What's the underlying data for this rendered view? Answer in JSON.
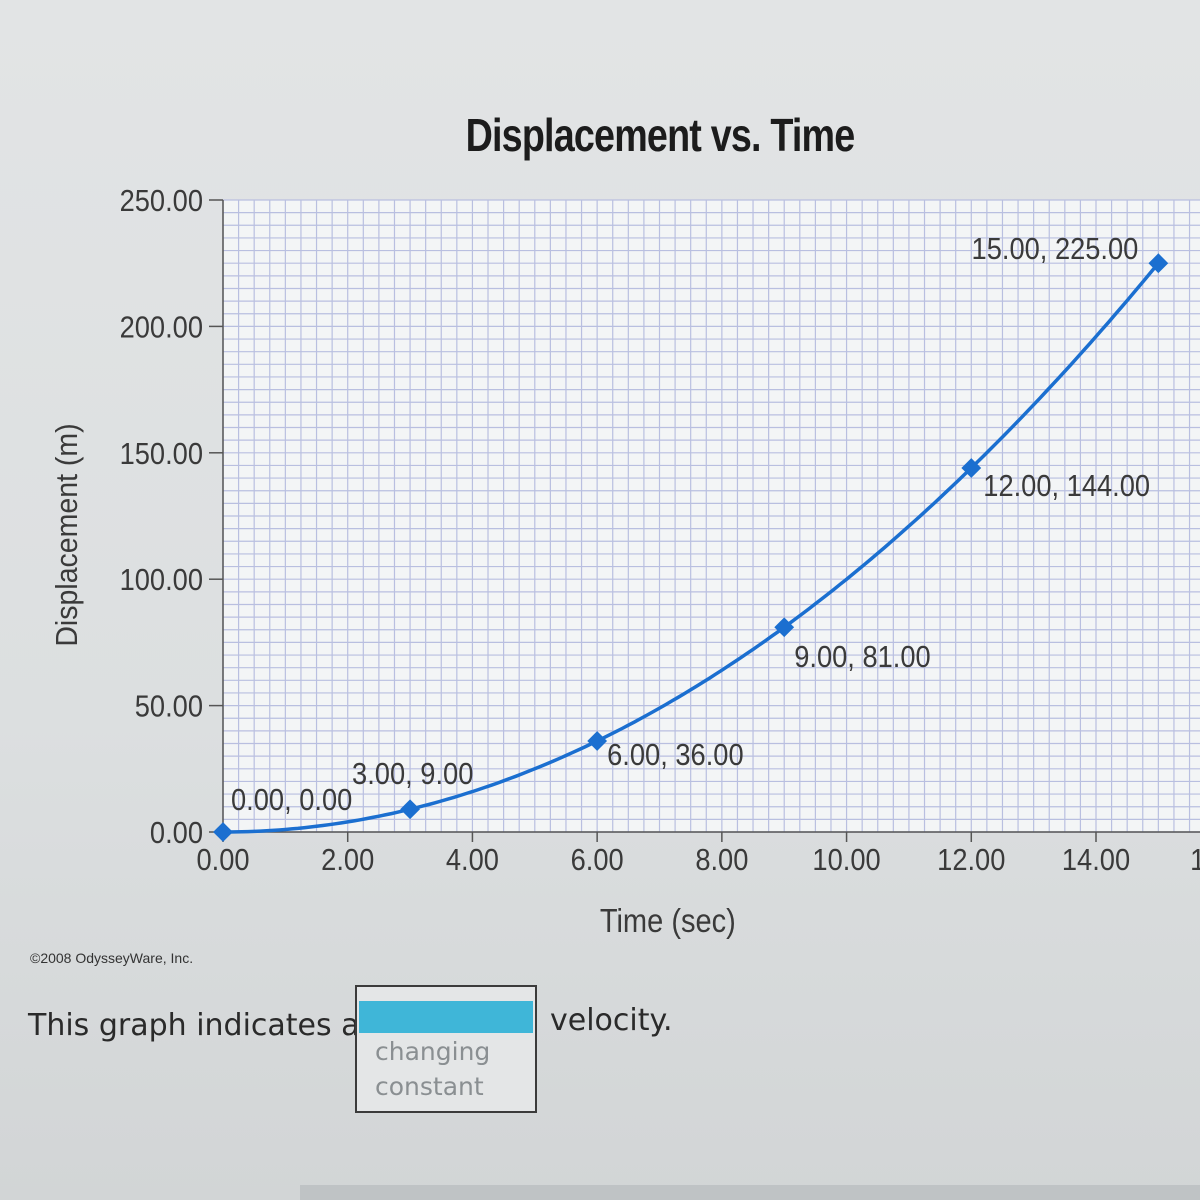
{
  "chart_data": {
    "type": "line",
    "title": "Displacement vs. Time",
    "xlabel": "Time (sec)",
    "ylabel": "Displacement (m)",
    "xlim": [
      0,
      15
    ],
    "ylim": [
      0,
      250
    ],
    "grid": true,
    "x_ticks": [
      "0.00",
      "2.00",
      "4.00",
      "6.00",
      "8.00",
      "10.00",
      "12.00",
      "14.00",
      "1"
    ],
    "y_ticks": [
      "0.00",
      "50.00",
      "100.00",
      "150.00",
      "200.00",
      "250.00"
    ],
    "series": [
      {
        "x": [
          0,
          3,
          6,
          9,
          12,
          15
        ],
        "values": [
          0,
          9,
          36,
          81,
          144,
          225
        ],
        "labels": [
          "0.00, 0.00",
          "3.00, 9.00",
          "6.00, 36.00",
          "9.00, 81.00",
          "12.00, 144.00",
          "15.00, 225.00"
        ],
        "color": "#1b6fd0"
      }
    ]
  },
  "copyright": "©2008 OdysseyWare, Inc.",
  "question": {
    "prefix": "This graph indicates a",
    "suffix": "velocity.",
    "options": [
      "changing",
      "constant"
    ],
    "selected_color": "#3fb6d8"
  }
}
